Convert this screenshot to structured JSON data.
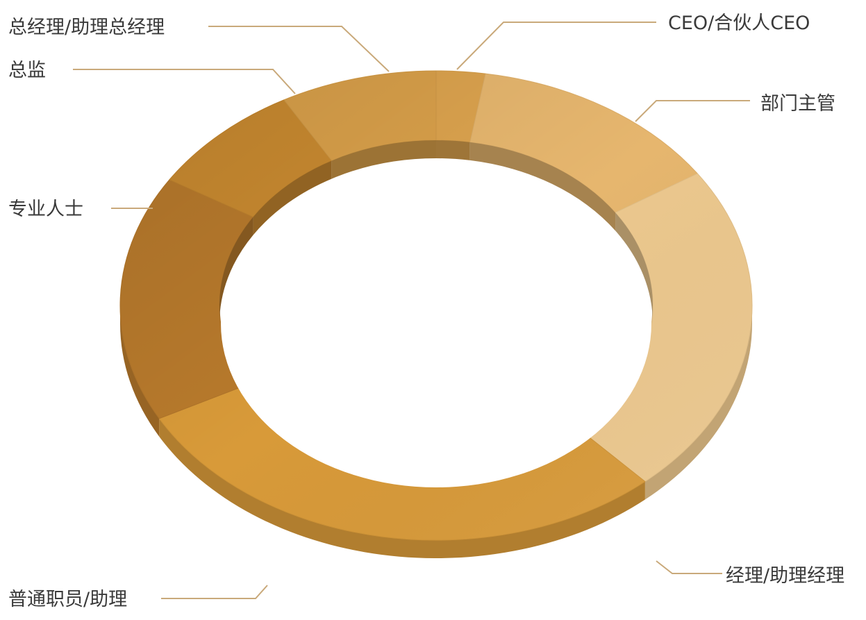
{
  "chart_data": {
    "type": "pie",
    "variant": "donut-3d",
    "title": "",
    "slices": [
      {
        "label": "CEO/合伙人CEO",
        "value": 2.5,
        "color": "#dca34e"
      },
      {
        "label": "部门主管",
        "value": 13.0,
        "color": "#e6b66e"
      },
      {
        "label": "经理/助理经理",
        "value": 23.0,
        "color": "#ecc88e"
      },
      {
        "label": "普通职员/助理",
        "value": 28.5,
        "color": "#d89a39"
      },
      {
        "label": "专业人士",
        "value": 17.0,
        "color": "#b87a2c"
      },
      {
        "label": "总监",
        "value": 8.0,
        "color": "#c98a30"
      },
      {
        "label": "总经理/助理总经理",
        "value": 8.0,
        "color": "#d9a04a"
      }
    ],
    "legend": "none"
  }
}
